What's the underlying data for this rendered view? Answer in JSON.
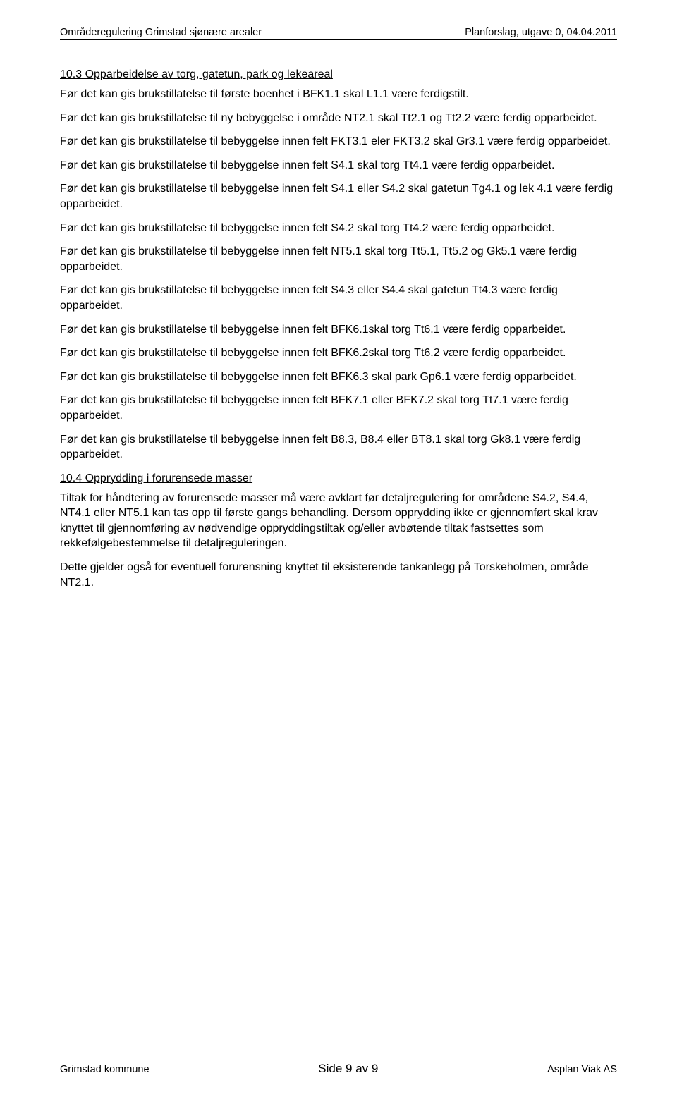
{
  "header": {
    "left": "Områderegulering Grimstad sjønære arealer",
    "right": "Planforslag, utgave 0, 04.04.2011"
  },
  "section103": {
    "title": "10.3  Opparbeidelse av torg, gatetun, park og lekeareal",
    "p1": "Før det kan gis brukstillatelse til første boenhet i BFK1.1 skal L1.1 være ferdigstilt.",
    "p2": "Før det kan gis brukstillatelse til ny bebyggelse i område NT2.1 skal Tt2.1 og Tt2.2 være ferdig opparbeidet.",
    "p3": "Før det kan gis brukstillatelse til bebyggelse innen felt FKT3.1 eler FKT3.2 skal Gr3.1 være ferdig opparbeidet.",
    "p4": "Før det kan gis brukstillatelse til bebyggelse innen felt S4.1 skal torg Tt4.1 være ferdig opparbeidet.",
    "p5": "Før det kan gis brukstillatelse til bebyggelse innen felt S4.1 eller S4.2 skal gatetun Tg4.1 og lek 4.1 være ferdig opparbeidet.",
    "p6": "Før det kan gis brukstillatelse til bebyggelse innen felt S4.2 skal torg Tt4.2 være ferdig opparbeidet.",
    "p7": "Før det kan gis brukstillatelse til bebyggelse innen felt NT5.1 skal torg Tt5.1, Tt5.2 og Gk5.1 være ferdig opparbeidet.",
    "p8": "Før det kan gis brukstillatelse til bebyggelse innen felt S4.3 eller S4.4 skal gatetun Tt4.3 være ferdig opparbeidet.",
    "p9": "Før det kan gis brukstillatelse til bebyggelse innen felt BFK6.1skal torg Tt6.1 være ferdig opparbeidet.",
    "p10": "Før det kan gis brukstillatelse til bebyggelse innen felt BFK6.2skal torg Tt6.2 være ferdig opparbeidet.",
    "p11": "Før det kan gis brukstillatelse til bebyggelse innen felt BFK6.3 skal park Gp6.1 være ferdig opparbeidet.",
    "p12": "Før det kan gis brukstillatelse til bebyggelse innen felt BFK7.1 eller BFK7.2 skal torg Tt7.1 være ferdig opparbeidet.",
    "p13": "Før det kan gis brukstillatelse til bebyggelse innen felt B8.3, B8.4 eller BT8.1 skal torg Gk8.1 være ferdig opparbeidet."
  },
  "section104": {
    "title": "10.4  Opprydding i forurensede masser",
    "p1": "Tiltak for håndtering av forurensede masser må være avklart før detaljregulering for områdene S4.2, S4.4, NT4.1 eller NT5.1 kan tas opp til første gangs behandling.  Dersom opprydding ikke er gjennomført skal krav knyttet til gjennomføring av nødvendige oppryddingstiltak og/eller avbøtende tiltak fastsettes som rekkefølgebestemmelse til detaljreguleringen.",
    "p2": "Dette gjelder også for eventuell forurensning knyttet til eksisterende tankanlegg på Torskeholmen, område NT2.1."
  },
  "footer": {
    "left": "Grimstad kommune",
    "center": "Side 9 av 9",
    "right": "Asplan Viak AS"
  }
}
